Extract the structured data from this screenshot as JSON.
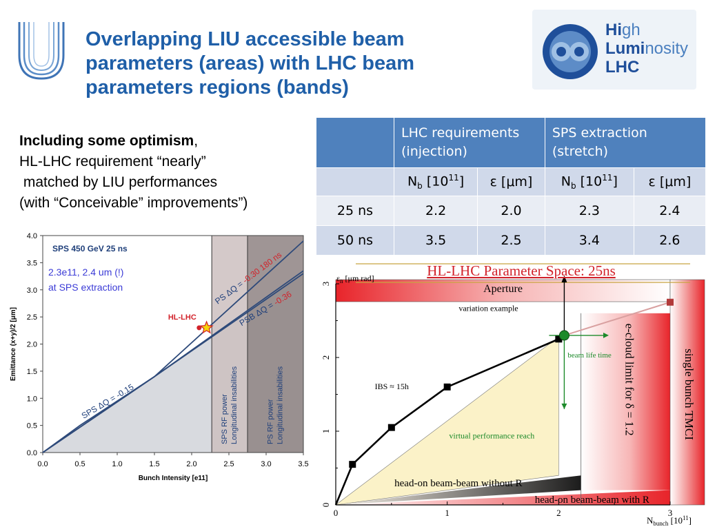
{
  "title": "Overlapping LIU accessible beam parameters (areas) with LHC beam parameters regions (bands)",
  "intro": {
    "bold": "Including some optimism",
    "rest_first": ",",
    "line2": "HL-LHC requirement “nearly”",
    "line3": " matched by LIU performances",
    "line4": "(with “Conceivable” improvements”)"
  },
  "logo_right": {
    "l1a": "Hi",
    "l1b": "gh",
    "l2a": "Lumi",
    "l2b": "nosity",
    "l3": "LHC"
  },
  "table": {
    "header": [
      "",
      "LHC requirements (injection)",
      "SPS extraction (stretch)"
    ],
    "sub": {
      "nb": "N",
      "nb_sub": "b",
      "nb_unit_pre": " [10",
      "nb_exp": "11",
      "nb_unit_post": "]",
      "eps": "ε [μm]"
    },
    "rows": [
      {
        "label": "25 ns",
        "values": [
          "2.2",
          "2.0",
          "2.3",
          "2.4"
        ]
      },
      {
        "label": "50 ns",
        "values": [
          "3.5",
          "2.5",
          "3.4",
          "2.6"
        ]
      }
    ]
  },
  "chart_data": [
    {
      "type": "line",
      "xlabel": "Bunch Intensity [e11]",
      "ylabel": "Emittance (x+y)/2 [μm]",
      "xlim": [
        0,
        3.5
      ],
      "ylim": [
        0,
        4.0
      ],
      "xticks": [
        "0.0",
        "0.5",
        "1.0",
        "1.5",
        "2.0",
        "2.5",
        "3.0",
        "3.5"
      ],
      "yticks": [
        "0.0",
        "0.5",
        "1.0",
        "1.5",
        "2.0",
        "2.5",
        "3.0",
        "3.5",
        "4.0"
      ],
      "inner_title": "SPS 450  GeV 25 ns",
      "annotation": {
        "l1": "2.3e11, 2.4 um (!)",
        "l2": "at SPS extraction"
      },
      "point_label": "HL-LHC",
      "hl_lhc_point": {
        "x": 2.1,
        "y": 2.3
      },
      "star_point": {
        "x": 2.2,
        "y": 2.3
      },
      "bands": [
        {
          "x": [
            2.27,
            2.75
          ],
          "label1": "SPS RF power",
          "label2": "Longitudinal insabilities"
        },
        {
          "x": [
            2.75,
            3.5
          ],
          "label1": "PS RF  power",
          "label2": "Longitudinal insabilities"
        }
      ],
      "series": [
        {
          "name": "PS ΔQ = -0.30 180 ns",
          "x": [
            0,
            1.5,
            3.5
          ],
          "y": [
            0,
            1.4,
            3.9
          ]
        },
        {
          "name": "PSB ΔQ = -0.36",
          "x": [
            0,
            1.5,
            3.5
          ],
          "y": [
            0,
            1.4,
            3.35
          ]
        },
        {
          "name": "SPS ΔQ = -0.15",
          "x": [
            0,
            0.5,
            1.5,
            3.5
          ],
          "y": [
            0,
            0.5,
            1.4,
            3.3
          ]
        }
      ],
      "labels": {
        "ps": "PS ΔQ = ",
        "ps_val": "-0.30 180 ns",
        "psb": "PSB ΔQ = ",
        "psb_val": "-0.36",
        "sps": "SPS ΔQ = -0.15"
      },
      "colors": {
        "curve": "#2e4a7a",
        "band1": "#cdbfbf",
        "band2": "#8e8282",
        "area": "#d8dadf",
        "red": "#d2222a",
        "star": "#f5d20a"
      }
    },
    {
      "type": "area",
      "title": "HL-LHC Parameter Space: 25ns",
      "xlabel": {
        "main": "N",
        "sub": "bunch",
        "unit_pre": " [10",
        "exp": "11",
        "unit_post": "]"
      },
      "ylabel": {
        "main": "ε",
        "sub": "n",
        "unit": " [μm rad]"
      },
      "xlim": [
        0,
        3
      ],
      "ylim": [
        0,
        3
      ],
      "xticks": [
        "0",
        "1",
        "2",
        "3"
      ],
      "yticks": [
        "0",
        "1",
        "2",
        "3"
      ],
      "regions": {
        "aperture": "Aperture",
        "tmci": "single bunch TMCI",
        "ecloud": "e-cloud limit for δ = 1.2",
        "bb_no_r": "head-on beam-beam without R",
        "bb_r": "head-on beam-beam with R",
        "virtual": "virtual performance reach"
      },
      "annotations": {
        "variation": "variation example",
        "ibs": "IBS ≈ 15h",
        "lifetime": "beam life time"
      },
      "ibs_curve": {
        "x": [
          0.15,
          0.5,
          1.0,
          2.0
        ],
        "y": [
          0.55,
          1.05,
          1.6,
          2.25
        ]
      },
      "green_point": {
        "x": 2.05,
        "y": 2.3
      },
      "extra_point": {
        "x": 3.0,
        "y": 2.75
      },
      "colors": {
        "red": "#e8242a",
        "green": "#1c8a2a",
        "virtual_fill": "#fbf2c8",
        "gold": "#c8a441"
      }
    }
  ]
}
